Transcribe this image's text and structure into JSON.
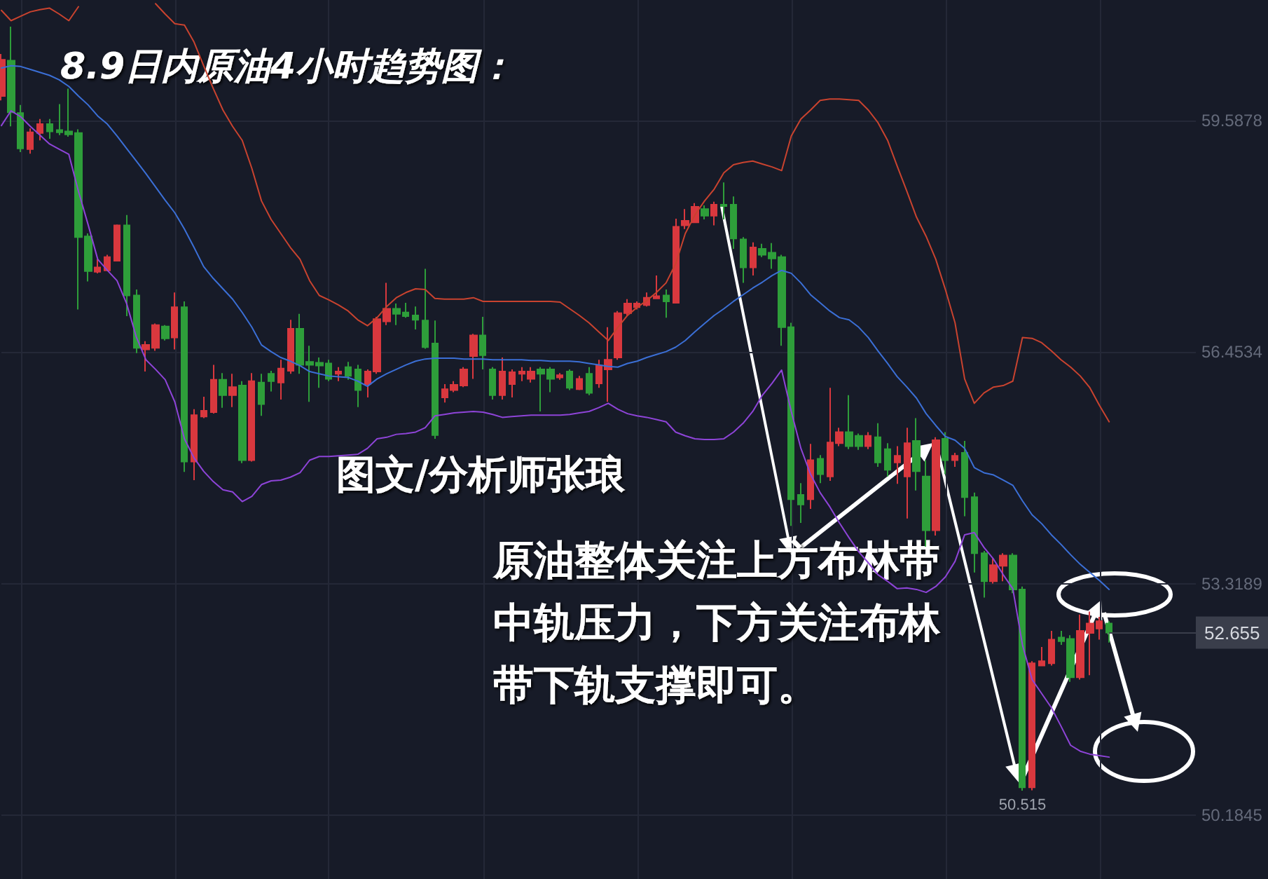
{
  "chart_data": {
    "type": "candlestick",
    "title": "8.9日内原油4小时趋势图：",
    "annotations": [
      "图文/分析师张琅",
      "原油整体关注上方布林带中轨压力，下方关注布林带下轨支撑即可。",
      {
        "text": "50.515",
        "y": 50.515
      }
    ],
    "categories": [
      null,
      null,
      null,
      null,
      null,
      null,
      null,
      null,
      null,
      null,
      null,
      null,
      null,
      null,
      null,
      null,
      null,
      null,
      null,
      null,
      null,
      null,
      null,
      null,
      null,
      null,
      null,
      null,
      null,
      null,
      null,
      null,
      null,
      null,
      null,
      null,
      null,
      null,
      null,
      null,
      null,
      null,
      null,
      null,
      null,
      null,
      null,
      null,
      null,
      null,
      null,
      null,
      null,
      null,
      null,
      null,
      null,
      null,
      null,
      null,
      null,
      null,
      null,
      null,
      null,
      null,
      null,
      null,
      null,
      null,
      null,
      null,
      null,
      null,
      null,
      null,
      null,
      null,
      null,
      null,
      null,
      null,
      null,
      null,
      null,
      null,
      null,
      null,
      null,
      null,
      null,
      null,
      null,
      null,
      null,
      null,
      null,
      null,
      null,
      null,
      null,
      null,
      null,
      null,
      null,
      null,
      null,
      null,
      null,
      null,
      null,
      null,
      null,
      null,
      null,
      null
    ],
    "ohlc": [
      [
        59.92,
        60.49,
        59.86,
        60.41
      ],
      [
        60.4,
        60.86,
        59.51,
        59.7
      ],
      [
        59.69,
        59.8,
        59.16,
        59.21
      ],
      [
        59.2,
        59.48,
        59.14,
        59.43
      ],
      [
        59.42,
        59.61,
        59.32,
        59.54
      ],
      [
        59.54,
        59.61,
        59.34,
        59.44
      ],
      [
        59.46,
        59.81,
        59.39,
        59.43
      ],
      [
        59.44,
        60.02,
        59.37,
        59.4
      ],
      [
        59.42,
        59.47,
        57.03,
        58.01
      ],
      [
        58.02,
        58.06,
        57.41,
        57.55
      ],
      [
        57.54,
        57.71,
        57.52,
        57.6
      ],
      [
        57.56,
        57.77,
        57.55,
        57.74
      ],
      [
        57.69,
        58.18,
        57.68,
        58.17
      ],
      [
        58.17,
        58.31,
        56.94,
        57.22
      ],
      [
        57.22,
        57.3,
        56.44,
        56.51
      ],
      [
        56.49,
        56.6,
        56.19,
        56.55
      ],
      [
        56.51,
        56.84,
        56.47,
        56.82
      ],
      [
        56.8,
        56.82,
        56.61,
        56.64
      ],
      [
        56.65,
        57.26,
        56.49,
        57.06
      ],
      [
        57.06,
        57.14,
        54.83,
        54.97
      ],
      [
        54.97,
        55.68,
        54.72,
        55.6
      ],
      [
        55.58,
        55.85,
        55.56,
        55.66
      ],
      [
        55.64,
        56.28,
        55.62,
        56.08
      ],
      [
        56.08,
        56.17,
        55.7,
        55.87
      ],
      [
        55.87,
        56.16,
        55.71,
        55.98
      ],
      [
        56.0,
        56.06,
        54.95,
        54.99
      ],
      [
        54.99,
        56.17,
        54.97,
        56.06
      ],
      [
        56.04,
        56.16,
        55.59,
        55.75
      ],
      [
        56.16,
        56.2,
        55.92,
        56.06
      ],
      [
        56.04,
        56.35,
        55.81,
        56.23
      ],
      [
        56.2,
        56.89,
        56.16,
        56.77
      ],
      [
        56.77,
        56.97,
        56.16,
        56.28
      ],
      [
        56.32,
        56.54,
        55.78,
        56.28
      ],
      [
        56.31,
        56.38,
        55.97,
        56.27
      ],
      [
        56.3,
        56.35,
        56.06,
        56.09
      ],
      [
        56.16,
        56.25,
        56.06,
        56.19
      ],
      [
        56.25,
        56.32,
        56.08,
        56.13
      ],
      [
        56.22,
        56.28,
        55.71,
        55.94
      ],
      [
        56.02,
        56.22,
        55.84,
        56.19
      ],
      [
        56.19,
        56.93,
        56.16,
        56.9
      ],
      [
        56.87,
        57.39,
        56.82,
        57.04
      ],
      [
        57.04,
        57.11,
        56.82,
        56.97
      ],
      [
        56.99,
        57.12,
        56.92,
        56.94
      ],
      [
        56.95,
        57.07,
        56.76,
        56.89
      ],
      [
        56.88,
        57.58,
        56.5,
        56.52
      ],
      [
        56.57,
        56.88,
        55.28,
        55.33
      ],
      [
        55.84,
        56.02,
        55.77,
        55.95
      ],
      [
        55.94,
        56.06,
        55.91,
        56.01
      ],
      [
        56.0,
        56.25,
        55.98,
        56.22
      ],
      [
        56.4,
        56.7,
        56.09,
        56.68
      ],
      [
        56.68,
        56.93,
        56.22,
        56.41
      ],
      [
        56.22,
        56.25,
        55.81,
        55.87
      ],
      [
        55.87,
        56.38,
        55.81,
        56.19
      ],
      [
        56.02,
        56.22,
        55.84,
        56.18
      ],
      [
        56.16,
        56.25,
        56.06,
        56.19
      ],
      [
        56.09,
        56.25,
        56.04,
        56.19
      ],
      [
        56.22,
        56.25,
        55.65,
        56.16
      ],
      [
        56.22,
        56.25,
        55.91,
        56.09
      ],
      [
        56.11,
        56.17,
        56.08,
        56.14
      ],
      [
        56.19,
        56.22,
        55.94,
        55.97
      ],
      [
        55.95,
        56.13,
        55.94,
        56.09
      ],
      [
        56.16,
        56.25,
        55.87,
        55.9
      ],
      [
        56.03,
        56.35,
        55.97,
        56.27
      ],
      [
        56.22,
        56.79,
        55.78,
        56.35
      ],
      [
        56.38,
        57.01,
        56.35,
        56.98
      ],
      [
        56.98,
        57.17,
        56.95,
        57.11
      ],
      [
        57.06,
        57.14,
        57.03,
        57.11
      ],
      [
        57.09,
        57.26,
        57.07,
        57.19
      ],
      [
        57.18,
        57.49,
        57.17,
        57.21
      ],
      [
        57.22,
        57.3,
        56.92,
        57.14
      ],
      [
        57.12,
        58.26,
        57.11,
        58.15
      ],
      [
        58.17,
        58.39,
        58.12,
        58.23
      ],
      [
        58.21,
        58.47,
        58.2,
        58.42
      ],
      [
        58.39,
        58.44,
        58.25,
        58.3
      ],
      [
        58.3,
        58.49,
        58.17,
        58.45
      ],
      [
        58.45,
        58.75,
        58.25,
        58.43
      ],
      [
        58.45,
        58.56,
        57.85,
        57.99
      ],
      [
        57.98,
        58.01,
        57.39,
        57.6
      ],
      [
        57.6,
        57.94,
        57.49,
        57.87
      ],
      [
        57.85,
        57.92,
        57.74,
        57.77
      ],
      [
        57.8,
        57.93,
        57.58,
        57.72
      ],
      [
        57.74,
        57.77,
        56.54,
        56.79
      ],
      [
        56.79,
        56.85,
        54.1,
        54.46
      ],
      [
        54.52,
        54.68,
        54.14,
        54.39
      ],
      [
        54.46,
        55.21,
        54.33,
        54.99
      ],
      [
        55.01,
        55.06,
        54.68,
        54.8
      ],
      [
        54.77,
        55.97,
        54.71,
        55.23
      ],
      [
        55.22,
        55.43,
        55.18,
        55.37
      ],
      [
        55.37,
        55.87,
        55.14,
        55.18
      ],
      [
        55.32,
        55.35,
        55.13,
        55.18
      ],
      [
        55.18,
        55.37,
        55.14,
        55.32
      ],
      [
        55.3,
        55.49,
        54.9,
        54.96
      ],
      [
        55.14,
        55.22,
        54.77,
        54.86
      ],
      [
        54.96,
        55.18,
        54.67,
        55.05
      ],
      [
        54.77,
        55.43,
        54.2,
        55.22
      ],
      [
        55.25,
        55.56,
        54.58,
        54.84
      ],
      [
        54.77,
        54.99,
        53.82,
        54.04
      ],
      [
        54.04,
        55.3,
        53.97,
        55.26
      ],
      [
        55.28,
        55.37,
        54.8,
        54.99
      ],
      [
        54.99,
        55.09,
        54.9,
        55.05
      ],
      [
        55.09,
        55.25,
        54.23,
        54.49
      ],
      [
        54.49,
        54.55,
        53.47,
        53.73
      ],
      [
        53.73,
        53.76,
        53.13,
        53.35
      ],
      [
        53.35,
        53.66,
        53.32,
        53.57
      ],
      [
        53.56,
        53.73,
        53.35,
        53.7
      ],
      [
        53.7,
        53.73,
        53.19,
        53.24
      ],
      [
        53.24,
        53.28,
        50.515,
        50.56
      ],
      [
        50.56,
        52.27,
        50.52,
        52.24
      ],
      [
        52.21,
        52.46,
        52.21,
        52.27
      ],
      [
        52.24,
        52.68,
        52.21,
        52.56
      ],
      [
        52.59,
        52.68,
        52.49,
        52.54
      ],
      [
        52.57,
        52.62,
        51.99,
        52.05
      ],
      [
        52.05,
        52.9,
        52.02,
        52.68
      ],
      [
        52.65,
        52.94,
        52.08,
        52.78
      ],
      [
        52.71,
        52.87,
        52.56,
        52.81
      ],
      [
        52.78,
        52.81,
        52.52,
        52.655
      ]
    ],
    "colors": [
      "#d9383e",
      "#2e9e3a",
      "#2e9e3a",
      "#d9383e",
      "#d9383e",
      "#2e9e3a",
      "#2e9e3a",
      "#2e9e3a",
      "#2e9e3a",
      "#2e9e3a",
      "#d9383e",
      "#d9383e",
      "#d9383e",
      "#2e9e3a",
      "#2e9e3a",
      "#d9383e",
      "#d9383e",
      "#2e9e3a",
      "#d9383e",
      "#2e9e3a",
      "#d9383e",
      "#d9383e",
      "#d9383e",
      "#2e9e3a",
      "#d9383e",
      "#2e9e3a",
      "#d9383e",
      "#2e9e3a",
      "#2e9e3a",
      "#d9383e",
      "#d9383e",
      "#2e9e3a",
      "#2e9e3a",
      "#2e9e3a",
      "#2e9e3a",
      "#d9383e",
      "#2e9e3a",
      "#2e9e3a",
      "#d9383e",
      "#d9383e",
      "#d9383e",
      "#2e9e3a",
      "#2e9e3a",
      "#2e9e3a",
      "#2e9e3a",
      "#2e9e3a",
      "#d9383e",
      "#d9383e",
      "#d9383e",
      "#d9383e",
      "#2e9e3a",
      "#2e9e3a",
      "#d9383e",
      "#d9383e",
      "#d9383e",
      "#d9383e",
      "#2e9e3a",
      "#2e9e3a",
      "#d9383e",
      "#2e9e3a",
      "#d9383e",
      "#2e9e3a",
      "#d9383e",
      "#d9383e",
      "#d9383e",
      "#d9383e",
      "#d9383e",
      "#d9383e",
      "#d9383e",
      "#2e9e3a",
      "#d9383e",
      "#d9383e",
      "#d9383e",
      "#2e9e3a",
      "#d9383e",
      "#2e9e3a",
      "#2e9e3a",
      "#2e9e3a",
      "#d9383e",
      "#2e9e3a",
      "#2e9e3a",
      "#2e9e3a",
      "#2e9e3a",
      "#2e9e3a",
      "#d9383e",
      "#2e9e3a",
      "#d9383e",
      "#d9383e",
      "#2e9e3a",
      "#2e9e3a",
      "#d9383e",
      "#2e9e3a",
      "#2e9e3a",
      "#d9383e",
      "#d9383e",
      "#2e9e3a",
      "#2e9e3a",
      "#d9383e",
      "#2e9e3a",
      "#d9383e",
      "#2e9e3a",
      "#2e9e3a",
      "#2e9e3a",
      "#d9383e",
      "#d9383e",
      "#2e9e3a",
      "#2e9e3a",
      "#d9383e",
      "#d9383e",
      "#d9383e",
      "#2e9e3a",
      "#2e9e3a",
      "#d9383e",
      "#d9383e",
      "#d9383e",
      "#2e9e3a"
    ],
    "series": [
      {
        "type": "line",
        "color": "#c9432f",
        "values": [
          61.08,
          60.94,
          61.0,
          61.06,
          61.09,
          61.11,
          61.03,
          60.94,
          61.13,
          null,
          null,
          null,
          null,
          null,
          null,
          null,
          61.17,
          61.03,
          60.9,
          60.88,
          60.65,
          60.33,
          60.02,
          59.73,
          59.51,
          59.32,
          58.94,
          58.5,
          58.25,
          58.06,
          57.87,
          57.71,
          57.42,
          57.22,
          57.16,
          57.09,
          57.01,
          56.89,
          56.81,
          56.92,
          57.07,
          57.19,
          57.26,
          57.31,
          57.3,
          57.18,
          57.17,
          57.17,
          57.17,
          57.19,
          57.14,
          57.14,
          57.14,
          57.14,
          57.14,
          57.14,
          57.14,
          57.14,
          57.13,
          57.04,
          56.95,
          56.85,
          56.73,
          56.61,
          56.79,
          56.95,
          57.06,
          57.15,
          57.26,
          57.39,
          57.65,
          58.06,
          58.31,
          58.5,
          58.66,
          58.88,
          58.99,
          59.02,
          59.04,
          59.0,
          58.96,
          58.91,
          59.38,
          59.61,
          59.73,
          59.86,
          59.88,
          59.88,
          59.87,
          59.86,
          59.73,
          59.56,
          59.32,
          58.97,
          58.63,
          58.28,
          58.02,
          57.71,
          57.3,
          56.85,
          56.09,
          55.76,
          55.9,
          55.98,
          56.0,
          56.06,
          56.65,
          56.64,
          56.58,
          56.47,
          56.35,
          56.25,
          56.13,
          55.97,
          55.73,
          55.51
        ]
      },
      {
        "type": "line",
        "color": "#3b6fd6",
        "values": [
          60.3,
          60.33,
          60.32,
          60.28,
          60.24,
          60.2,
          60.14,
          60.05,
          59.92,
          59.8,
          59.65,
          59.54,
          59.38,
          59.21,
          59.04,
          58.87,
          58.69,
          58.51,
          58.34,
          58.12,
          57.87,
          57.61,
          57.45,
          57.31,
          57.17,
          56.99,
          56.79,
          56.55,
          56.46,
          56.38,
          56.33,
          56.27,
          56.19,
          56.16,
          56.13,
          56.12,
          56.11,
          56.06,
          55.99,
          56.09,
          56.16,
          56.22,
          56.28,
          56.33,
          56.36,
          56.37,
          56.37,
          56.37,
          56.36,
          56.36,
          56.36,
          56.35,
          56.35,
          56.35,
          56.35,
          56.34,
          56.34,
          56.33,
          56.33,
          56.33,
          56.32,
          56.3,
          56.28,
          56.26,
          56.25,
          56.3,
          56.33,
          56.38,
          56.42,
          56.46,
          56.52,
          56.61,
          56.73,
          56.84,
          56.95,
          57.04,
          57.14,
          57.23,
          57.32,
          57.4,
          57.49,
          57.56,
          57.52,
          57.39,
          57.23,
          57.12,
          57.01,
          56.92,
          56.89,
          56.79,
          56.65,
          56.47,
          56.3,
          56.12,
          55.98,
          55.83,
          55.62,
          55.46,
          55.31,
          55.26,
          55.15,
          54.89,
          54.82,
          54.79,
          54.72,
          54.65,
          54.44,
          54.25,
          54.13,
          53.98,
          53.85,
          53.71,
          53.58,
          53.47,
          53.36,
          53.24
        ]
      },
      {
        "type": "line",
        "color": "#8e44d8",
        "values": [
          59.52,
          59.72,
          59.64,
          59.51,
          59.39,
          59.27,
          59.2,
          59.13,
          58.63,
          58.18,
          57.71,
          57.56,
          57.42,
          57.11,
          56.66,
          56.35,
          56.22,
          56.08,
          55.78,
          55.28,
          55.02,
          54.84,
          54.7,
          54.59,
          54.56,
          54.43,
          54.5,
          54.66,
          54.71,
          54.72,
          54.76,
          54.82,
          54.99,
          55.04,
          55.04,
          55.05,
          55.06,
          55.07,
          55.15,
          55.28,
          55.3,
          55.34,
          55.35,
          55.37,
          55.43,
          55.59,
          55.61,
          55.63,
          55.64,
          55.65,
          55.64,
          55.61,
          55.57,
          55.58,
          55.59,
          55.6,
          55.6,
          55.6,
          55.6,
          55.61,
          55.63,
          55.65,
          55.7,
          55.76,
          55.68,
          55.62,
          55.59,
          55.57,
          55.54,
          55.51,
          55.37,
          55.32,
          55.28,
          55.27,
          55.27,
          55.28,
          55.37,
          55.49,
          55.65,
          55.87,
          56.03,
          56.21,
          55.65,
          55.15,
          54.8,
          54.55,
          54.36,
          54.14,
          53.94,
          53.75,
          53.6,
          53.44,
          53.35,
          53.25,
          53.26,
          53.24,
          53.2,
          53.28,
          53.41,
          53.62,
          53.98,
          54.01,
          53.81,
          53.65,
          53.44,
          53.25,
          52.49,
          52.02,
          51.83,
          51.64,
          51.39,
          51.13,
          51.05,
          51.01,
          50.99,
          50.97
        ]
      }
    ],
    "ylim": [
      49.32,
      61.22
    ],
    "yticks": [
      50.1845,
      53.3189,
      56.4534,
      59.5878
    ],
    "ref_lines": [
      {
        "axis": "y",
        "value": 52.655,
        "label": "52.655",
        "color": "#3a3e4b"
      }
    ],
    "grid": true,
    "tick_labels": "y",
    "marker": "none"
  }
}
